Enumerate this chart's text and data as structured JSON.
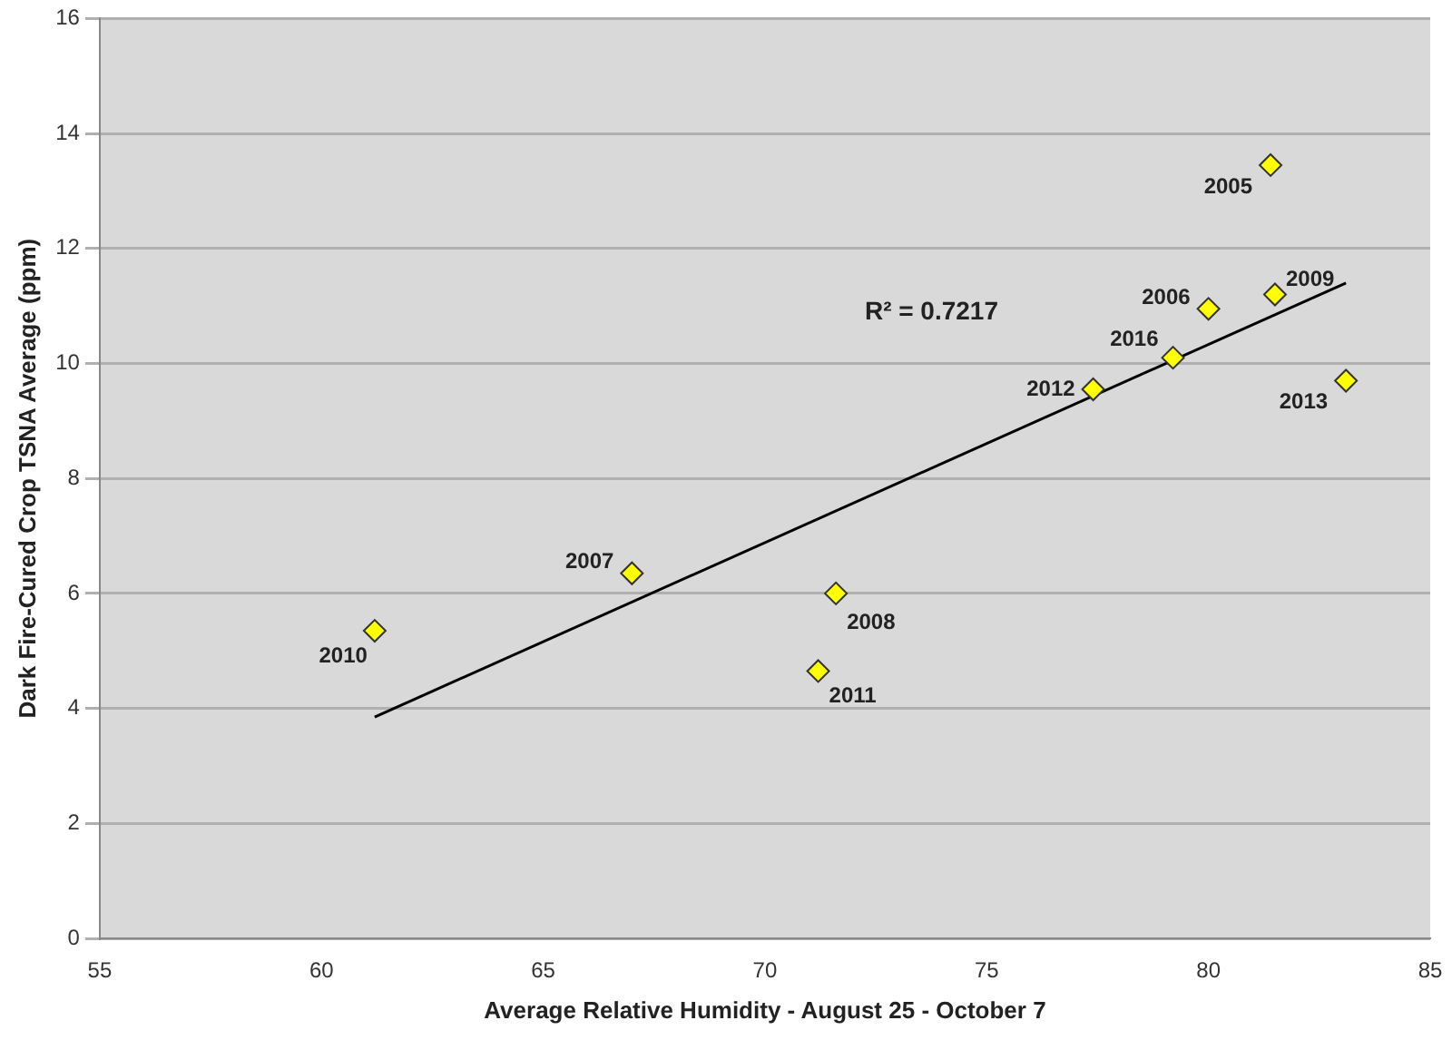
{
  "chart_data": {
    "type": "scatter",
    "xlabel": "Average Relative Humidity - August 25 - October 7",
    "ylabel": "Dark Fire-Cured Crop TSNA Average (ppm)",
    "xlim": [
      55,
      85
    ],
    "xticks": [
      55,
      60,
      65,
      70,
      75,
      80,
      85
    ],
    "ylim": [
      0,
      16
    ],
    "yticks": [
      0,
      2,
      4,
      6,
      8,
      10,
      12,
      14,
      16
    ],
    "grid": "y",
    "legend": false,
    "series": [
      {
        "type": "scatter",
        "color": "#ffff00",
        "marker": "diamond",
        "x": [
          81.4,
          80.0,
          67.0,
          71.6,
          81.5,
          61.2,
          71.2,
          77.4,
          83.1,
          79.2
        ],
        "values": [
          13.45,
          10.95,
          6.35,
          6.0,
          11.2,
          5.35,
          4.65,
          9.55,
          9.7,
          10.1
        ]
      },
      {
        "type": "line",
        "color": "#000000",
        "marker": "none",
        "x": [
          61.2,
          83.1
        ],
        "values": [
          3.85,
          11.4
        ]
      }
    ],
    "annotations": [
      {
        "text": "2005",
        "x": 81.4,
        "y": 13.45
      },
      {
        "text": "2006",
        "x": 80.0,
        "y": 10.95
      },
      {
        "text": "2007",
        "x": 67.0,
        "y": 6.35
      },
      {
        "text": "2008",
        "x": 71.6,
        "y": 6.0
      },
      {
        "text": "2009",
        "x": 81.5,
        "y": 11.2
      },
      {
        "text": "2010",
        "x": 61.2,
        "y": 5.35
      },
      {
        "text": "2011",
        "x": 71.2,
        "y": 4.65
      },
      {
        "text": "2012",
        "x": 77.4,
        "y": 9.55
      },
      {
        "text": "2013",
        "x": 83.1,
        "y": 9.7
      },
      {
        "text": "2016",
        "x": 79.2,
        "y": 10.1
      },
      "R² = 0.7217"
    ]
  }
}
